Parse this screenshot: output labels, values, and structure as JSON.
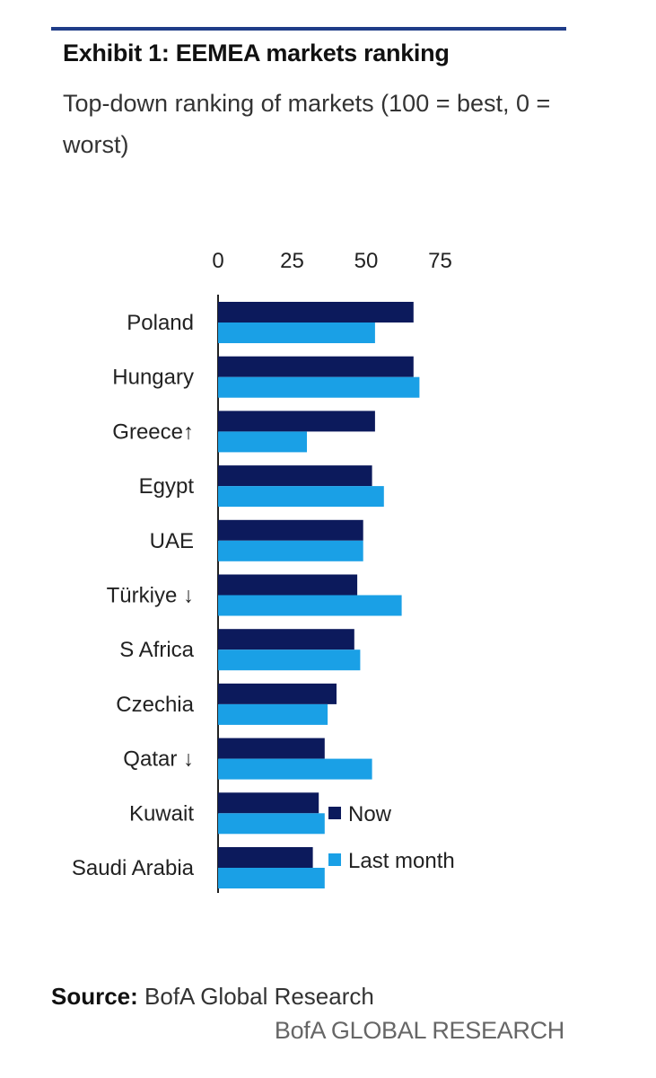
{
  "exhibit": {
    "title": "Exhibit 1: EEMEA markets ranking",
    "subtitle": "Top-down ranking of markets (100 = best, 0 = worst)"
  },
  "chart_data": {
    "type": "bar",
    "orientation": "horizontal",
    "categories": [
      "Poland",
      "Hungary",
      "Greece↑",
      "Egypt",
      "UAE",
      "Türkiye ↓",
      "S Africa",
      "Czechia",
      "Qatar ↓",
      "Kuwait",
      "Saudi Arabia"
    ],
    "series": [
      {
        "name": "Now",
        "color": "#0c1a5c",
        "values": [
          66,
          66,
          53,
          52,
          49,
          47,
          46,
          40,
          36,
          34,
          32
        ]
      },
      {
        "name": "Last month",
        "color": "#1aa0e6",
        "values": [
          53,
          68,
          30,
          56,
          49,
          62,
          48,
          37,
          52,
          36,
          36
        ]
      }
    ],
    "x_ticks": [
      0,
      25,
      50,
      75
    ],
    "xlim": [
      0,
      100
    ],
    "axis_position": "top",
    "grid": false,
    "legend_position": "bottom-right"
  },
  "source": {
    "label": "Source:",
    "text": " BofA Global Research"
  },
  "footer": {
    "brand": "BofA GLOBAL RESEARCH"
  }
}
